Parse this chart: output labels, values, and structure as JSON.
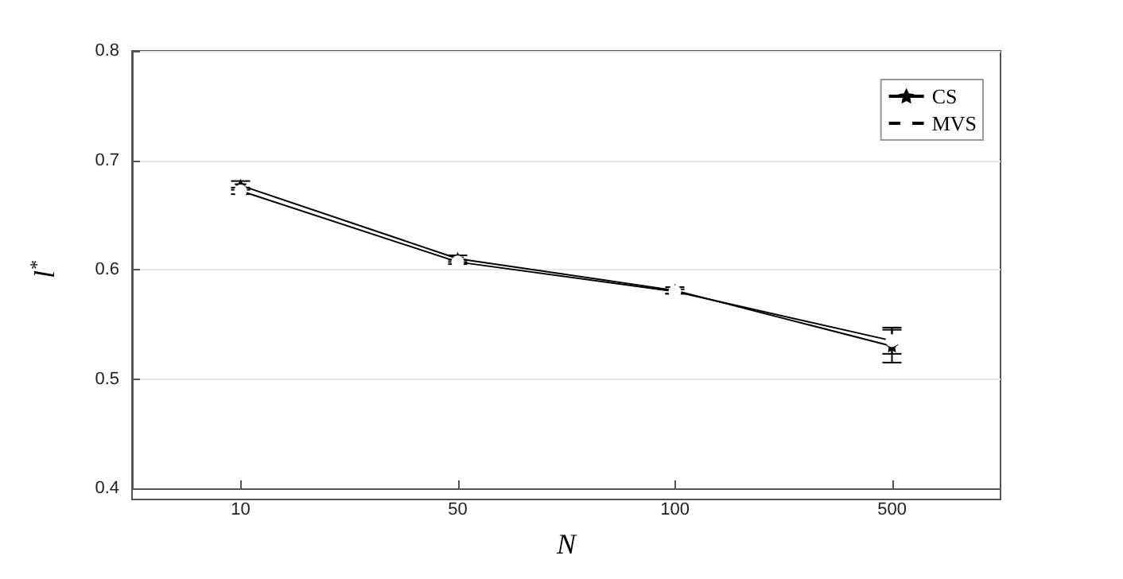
{
  "chart_data": {
    "type": "line",
    "categories": [
      "10",
      "50",
      "100",
      "500"
    ],
    "xlabel": "N",
    "ylabel": "l$^{*}$",
    "series": [
      {
        "name": "CS",
        "color": "#000000",
        "marker": "star",
        "values": [
          0.677,
          0.61,
          0.581,
          0.53
        ],
        "errors": [
          0.004,
          0.003,
          0.003,
          0.015
        ]
      },
      {
        "name": "MVS",
        "color": "#000000",
        "marker": "circle",
        "values": [
          0.672,
          0.607,
          0.58,
          0.535
        ],
        "errors": [
          0.003,
          0.002,
          0.002,
          0.012
        ]
      }
    ],
    "ylim": [
      0.4,
      0.8
    ],
    "yticks": [
      0.4,
      0.5,
      0.6,
      0.7,
      0.8
    ],
    "grid": "y",
    "legend": "top right",
    "line_style": "solid"
  }
}
